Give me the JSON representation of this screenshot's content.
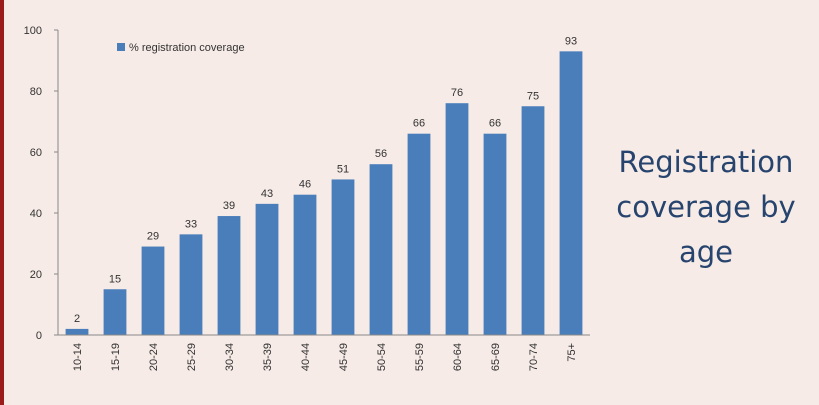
{
  "side_title": {
    "line1": "Registration",
    "line2": "coverage by",
    "line3": "age"
  },
  "colors": {
    "bar": "#4a7ebb",
    "background": "#f6ebe6",
    "border_accent": "#9b1b1b",
    "title_text": "#27446e"
  },
  "chart_data": {
    "type": "bar",
    "categories": [
      "10-14",
      "15-19",
      "20-24",
      "25-29",
      "30-34",
      "35-39",
      "40-44",
      "45-49",
      "50-54",
      "55-59",
      "60-64",
      "65-69",
      "70-74",
      "75+"
    ],
    "series": [
      {
        "name": "% registration coverage",
        "values": [
          2,
          15,
          29,
          33,
          39,
          43,
          46,
          51,
          56,
          66,
          76,
          66,
          75,
          93
        ]
      }
    ],
    "ylim": [
      0,
      100
    ],
    "yticks": [
      0,
      20,
      40,
      60,
      80,
      100
    ],
    "legend_position": "top-left",
    "grid": false,
    "data_labels": true
  }
}
